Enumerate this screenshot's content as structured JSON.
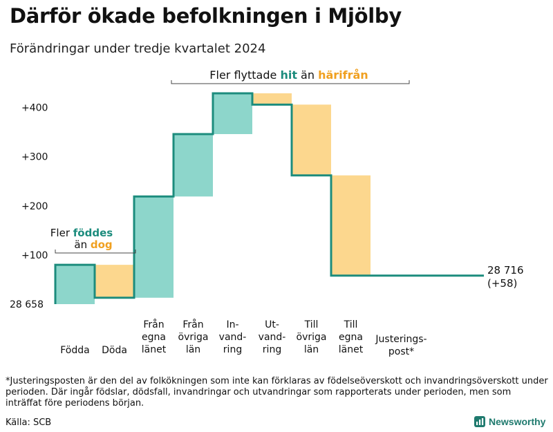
{
  "title": "Därför ökade befolkningen i Mjölby",
  "subtitle": "Förändringar under tredje kvartalet 2024",
  "footnote": "*Justeringsposten är den del av folkökningen som inte kan förklaras av födelseöverskott och invandringsöverskott under perioden. Där ingår födslar, dödsfall, invandringar och utvandringar som rapporterats under perioden, men som inträffat före periodens början.",
  "source": "Källa: SCB",
  "logo_text": "Newsworthy",
  "colors": {
    "increase": "#8dd6cb",
    "decrease": "#fcd78e",
    "line": "#1c8c7d",
    "hit": "#1c8c7d",
    "harifran": "#f0a020"
  },
  "chart_data": {
    "type": "waterfall",
    "base_label": "28 658",
    "yticks": [
      100,
      200,
      300,
      400
    ],
    "ytick_labels": [
      "+100",
      "+200",
      "+300",
      "+400"
    ],
    "ylim": [
      0,
      430
    ],
    "steps": [
      {
        "label": [
          "Födda"
        ],
        "delta": 80,
        "kind": "increase"
      },
      {
        "label": [
          "Döda"
        ],
        "delta": -67,
        "kind": "decrease"
      },
      {
        "label": [
          "Från",
          "egna",
          "länet"
        ],
        "delta": 206,
        "kind": "increase"
      },
      {
        "label": [
          "Från",
          "övriga",
          "län"
        ],
        "delta": 127,
        "kind": "increase"
      },
      {
        "label": [
          "In-",
          "vand-",
          "ring"
        ],
        "delta": 83,
        "kind": "increase"
      },
      {
        "label": [
          "Ut-",
          "vand-",
          "ring"
        ],
        "delta": -23,
        "kind": "decrease"
      },
      {
        "label": [
          "Till",
          "övriga",
          "län"
        ],
        "delta": -144,
        "kind": "decrease"
      },
      {
        "label": [
          "Till",
          "egna",
          "länet"
        ],
        "delta": -204,
        "kind": "decrease"
      },
      {
        "label": [
          "Justerings-",
          "post*"
        ],
        "delta": 0,
        "kind": "adjustment"
      }
    ],
    "end_label": "28 716",
    "end_change": "(+58)",
    "annotations": {
      "births": {
        "prefix": "Fler",
        "highlight1": "föddes",
        "middle": "än",
        "highlight2": "dog"
      },
      "moves": {
        "prefix": "Fler flyttade",
        "highlight1": "hit",
        "middle": "än",
        "highlight2": "härifrån"
      }
    }
  }
}
